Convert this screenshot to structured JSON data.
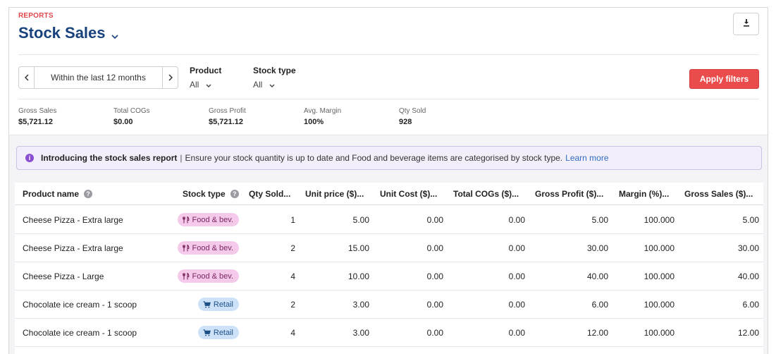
{
  "header": {
    "eyebrow": "REPORTS",
    "title": "Stock Sales"
  },
  "filters": {
    "date_range": "Within the last 12 months",
    "product": {
      "label": "Product",
      "value": "All"
    },
    "stock_type": {
      "label": "Stock type",
      "value": "All"
    },
    "apply_label": "Apply filters"
  },
  "metrics": [
    {
      "label": "Gross Sales",
      "value": "$5,721.12"
    },
    {
      "label": "Total COGs",
      "value": "$0.00"
    },
    {
      "label": "Gross Profit",
      "value": "$5,721.12"
    },
    {
      "label": "Avg. Margin",
      "value": "100%"
    },
    {
      "label": "Qty Sold",
      "value": "928"
    }
  ],
  "banner": {
    "title": "Introducing the stock sales report",
    "separator": "|",
    "text": "Ensure your stock quantity is up to date and Food and beverage items are categorised by stock type.",
    "link": "Learn more"
  },
  "table": {
    "columns": [
      "Product name",
      "Stock type",
      "Qty Sold...",
      "Unit price ($)...",
      "Unit Cost ($)...",
      "Total COGs ($)...",
      "Gross Profit ($)...",
      "Margin (%)...",
      "Gross Sales ($)..."
    ],
    "rows": [
      [
        "Cheese Pizza - Extra large",
        "Food & bev.",
        "1",
        "5.00",
        "0.00",
        "0.00",
        "5.00",
        "100.000",
        "5.00"
      ],
      [
        "Cheese Pizza - Extra large",
        "Food & bev.",
        "2",
        "15.00",
        "0.00",
        "0.00",
        "30.00",
        "100.000",
        "30.00"
      ],
      [
        "Cheese Pizza - Large",
        "Food & bev.",
        "4",
        "10.00",
        "0.00",
        "0.00",
        "40.00",
        "100.000",
        "40.00"
      ],
      [
        "Chocolate ice cream - 1 scoop",
        "Retail",
        "2",
        "3.00",
        "0.00",
        "0.00",
        "6.00",
        "100.000",
        "6.00"
      ],
      [
        "Chocolate ice cream - 1 scoop",
        "Retail",
        "4",
        "3.00",
        "0.00",
        "0.00",
        "12.00",
        "100.000",
        "12.00"
      ]
    ]
  },
  "colors": {
    "accent": "#ea4b4b",
    "title": "#17427b",
    "food_pill": "#f5c9ea",
    "retail_pill": "#cde2f8"
  }
}
